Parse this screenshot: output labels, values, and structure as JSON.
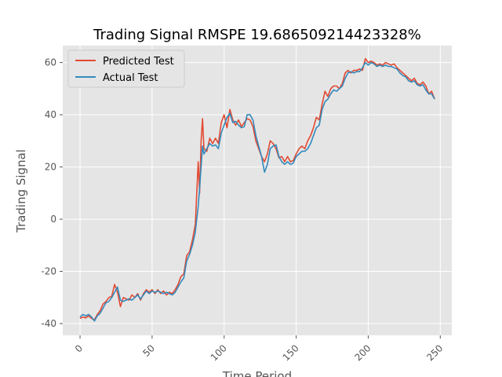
{
  "chart_data": {
    "type": "line",
    "title": "Trading Signal RMSPE 19.686509214423328%",
    "xlabel": "Time Period",
    "ylabel": "Trading Signal",
    "xlim": [
      -12,
      258
    ],
    "ylim": [
      -44.5,
      66.5
    ],
    "xticks": [
      0,
      50,
      100,
      150,
      200,
      250
    ],
    "yticks": [
      -40,
      -20,
      0,
      20,
      40,
      60
    ],
    "grid": true,
    "legend_position": "top-left",
    "series": [
      {
        "name": "Predicted Test",
        "color": "#e24a33",
        "points": [
          [
            0,
            -38
          ],
          [
            2,
            -37.5
          ],
          [
            4,
            -37.8
          ],
          [
            6,
            -37
          ],
          [
            8,
            -38
          ],
          [
            10,
            -38.5
          ],
          [
            12,
            -36.5
          ],
          [
            14,
            -35
          ],
          [
            16,
            -32.5
          ],
          [
            18,
            -31.5
          ],
          [
            20,
            -30
          ],
          [
            22,
            -29.5
          ],
          [
            24,
            -25
          ],
          [
            26,
            -28
          ],
          [
            28,
            -33.5
          ],
          [
            30,
            -30
          ],
          [
            32,
            -30.5
          ],
          [
            34,
            -31
          ],
          [
            36,
            -29
          ],
          [
            38,
            -30
          ],
          [
            40,
            -28.5
          ],
          [
            42,
            -31
          ],
          [
            44,
            -28.5
          ],
          [
            46,
            -27
          ],
          [
            48,
            -28
          ],
          [
            50,
            -27
          ],
          [
            52,
            -28.5
          ],
          [
            54,
            -27
          ],
          [
            56,
            -28.5
          ],
          [
            58,
            -27.5
          ],
          [
            60,
            -29
          ],
          [
            62,
            -28
          ],
          [
            64,
            -28.5
          ],
          [
            66,
            -27
          ],
          [
            68,
            -25
          ],
          [
            70,
            -22
          ],
          [
            72,
            -21
          ],
          [
            74,
            -14
          ],
          [
            76,
            -12.5
          ],
          [
            78,
            -8
          ],
          [
            80,
            -2
          ],
          [
            82,
            22
          ],
          [
            83,
            10
          ],
          [
            84,
            30
          ],
          [
            85,
            38.5
          ],
          [
            86,
            27
          ],
          [
            88,
            26
          ],
          [
            90,
            31
          ],
          [
            92,
            29
          ],
          [
            94,
            31
          ],
          [
            96,
            29
          ],
          [
            98,
            37
          ],
          [
            100,
            40
          ],
          [
            102,
            35
          ],
          [
            104,
            42
          ],
          [
            106,
            38
          ],
          [
            108,
            36
          ],
          [
            110,
            38
          ],
          [
            112,
            35.5
          ],
          [
            114,
            37
          ],
          [
            116,
            38.5
          ],
          [
            118,
            38
          ],
          [
            120,
            35.5
          ],
          [
            122,
            30
          ],
          [
            124,
            27
          ],
          [
            126,
            24
          ],
          [
            128,
            22
          ],
          [
            130,
            25
          ],
          [
            132,
            30
          ],
          [
            134,
            29
          ],
          [
            136,
            27
          ],
          [
            138,
            23.5
          ],
          [
            140,
            24
          ],
          [
            142,
            22
          ],
          [
            144,
            24
          ],
          [
            146,
            22
          ],
          [
            148,
            22.5
          ],
          [
            150,
            25
          ],
          [
            152,
            27
          ],
          [
            154,
            28
          ],
          [
            156,
            27
          ],
          [
            158,
            30
          ],
          [
            160,
            32
          ],
          [
            162,
            35
          ],
          [
            164,
            39
          ],
          [
            166,
            38
          ],
          [
            168,
            44
          ],
          [
            170,
            49
          ],
          [
            172,
            47
          ],
          [
            174,
            50
          ],
          [
            176,
            51
          ],
          [
            178,
            51
          ],
          [
            180,
            50
          ],
          [
            182,
            52
          ],
          [
            184,
            56
          ],
          [
            186,
            57
          ],
          [
            188,
            56
          ],
          [
            190,
            57
          ],
          [
            192,
            57
          ],
          [
            194,
            57.5
          ],
          [
            196,
            57
          ],
          [
            198,
            61.5
          ],
          [
            200,
            60
          ],
          [
            202,
            60.5
          ],
          [
            204,
            60
          ],
          [
            206,
            59
          ],
          [
            208,
            59.5
          ],
          [
            210,
            59
          ],
          [
            212,
            60
          ],
          [
            214,
            59.5
          ],
          [
            216,
            59
          ],
          [
            218,
            59.5
          ],
          [
            220,
            58
          ],
          [
            222,
            57
          ],
          [
            224,
            56
          ],
          [
            226,
            55
          ],
          [
            228,
            54
          ],
          [
            230,
            53
          ],
          [
            232,
            54
          ],
          [
            234,
            52
          ],
          [
            236,
            51.5
          ],
          [
            238,
            52.5
          ],
          [
            240,
            51
          ],
          [
            242,
            48
          ],
          [
            244,
            49
          ],
          [
            246,
            46
          ]
        ]
      },
      {
        "name": "Actual Test",
        "color": "#348abd",
        "points": [
          [
            0,
            -37.5
          ],
          [
            2,
            -36.5
          ],
          [
            4,
            -37
          ],
          [
            6,
            -36.5
          ],
          [
            8,
            -37.5
          ],
          [
            10,
            -39
          ],
          [
            12,
            -37
          ],
          [
            14,
            -36
          ],
          [
            16,
            -34
          ],
          [
            18,
            -32
          ],
          [
            20,
            -31.5
          ],
          [
            22,
            -30
          ],
          [
            24,
            -28
          ],
          [
            26,
            -26
          ],
          [
            28,
            -31
          ],
          [
            30,
            -31.5
          ],
          [
            32,
            -31
          ],
          [
            34,
            -30.5
          ],
          [
            36,
            -31
          ],
          [
            38,
            -30
          ],
          [
            40,
            -29
          ],
          [
            42,
            -30.5
          ],
          [
            44,
            -29
          ],
          [
            46,
            -27.5
          ],
          [
            48,
            -28.5
          ],
          [
            50,
            -27.5
          ],
          [
            52,
            -28
          ],
          [
            54,
            -27.5
          ],
          [
            56,
            -28
          ],
          [
            58,
            -28.5
          ],
          [
            60,
            -28
          ],
          [
            62,
            -28.5
          ],
          [
            64,
            -29
          ],
          [
            66,
            -28
          ],
          [
            68,
            -26
          ],
          [
            70,
            -24
          ],
          [
            72,
            -22.5
          ],
          [
            74,
            -16
          ],
          [
            76,
            -13.5
          ],
          [
            78,
            -10
          ],
          [
            80,
            -5
          ],
          [
            82,
            5
          ],
          [
            83,
            12
          ],
          [
            84,
            20
          ],
          [
            85,
            28
          ],
          [
            86,
            25
          ],
          [
            88,
            27
          ],
          [
            90,
            29
          ],
          [
            92,
            28
          ],
          [
            94,
            28.5
          ],
          [
            96,
            27
          ],
          [
            98,
            33
          ],
          [
            100,
            36
          ],
          [
            102,
            39
          ],
          [
            104,
            40.5
          ],
          [
            106,
            37
          ],
          [
            108,
            37.5
          ],
          [
            110,
            36
          ],
          [
            112,
            35
          ],
          [
            114,
            35.5
          ],
          [
            116,
            40
          ],
          [
            118,
            40
          ],
          [
            120,
            38
          ],
          [
            122,
            32
          ],
          [
            124,
            28
          ],
          [
            126,
            24
          ],
          [
            128,
            18
          ],
          [
            130,
            21
          ],
          [
            132,
            27
          ],
          [
            134,
            28
          ],
          [
            136,
            28.5
          ],
          [
            138,
            24
          ],
          [
            140,
            22
          ],
          [
            142,
            21
          ],
          [
            144,
            22
          ],
          [
            146,
            21
          ],
          [
            148,
            21.5
          ],
          [
            150,
            24
          ],
          [
            152,
            25
          ],
          [
            154,
            26
          ],
          [
            156,
            26
          ],
          [
            158,
            27
          ],
          [
            160,
            29
          ],
          [
            162,
            32
          ],
          [
            164,
            35
          ],
          [
            166,
            36
          ],
          [
            168,
            42
          ],
          [
            170,
            45
          ],
          [
            172,
            46
          ],
          [
            174,
            48
          ],
          [
            176,
            49.5
          ],
          [
            178,
            49
          ],
          [
            180,
            50
          ],
          [
            182,
            51
          ],
          [
            184,
            54
          ],
          [
            186,
            56
          ],
          [
            188,
            56.5
          ],
          [
            190,
            56
          ],
          [
            192,
            56.5
          ],
          [
            194,
            56.5
          ],
          [
            196,
            58
          ],
          [
            198,
            60
          ],
          [
            200,
            59
          ],
          [
            202,
            60
          ],
          [
            204,
            59.5
          ],
          [
            206,
            58.5
          ],
          [
            208,
            59
          ],
          [
            210,
            58.5
          ],
          [
            212,
            59
          ],
          [
            214,
            58.5
          ],
          [
            216,
            58.5
          ],
          [
            218,
            58
          ],
          [
            220,
            57.5
          ],
          [
            222,
            56
          ],
          [
            224,
            55
          ],
          [
            226,
            54.5
          ],
          [
            228,
            53
          ],
          [
            230,
            52.5
          ],
          [
            232,
            53
          ],
          [
            234,
            51.5
          ],
          [
            236,
            51
          ],
          [
            238,
            51.5
          ],
          [
            240,
            49.5
          ],
          [
            242,
            48
          ],
          [
            244,
            48
          ],
          [
            246,
            46
          ]
        ]
      }
    ]
  }
}
